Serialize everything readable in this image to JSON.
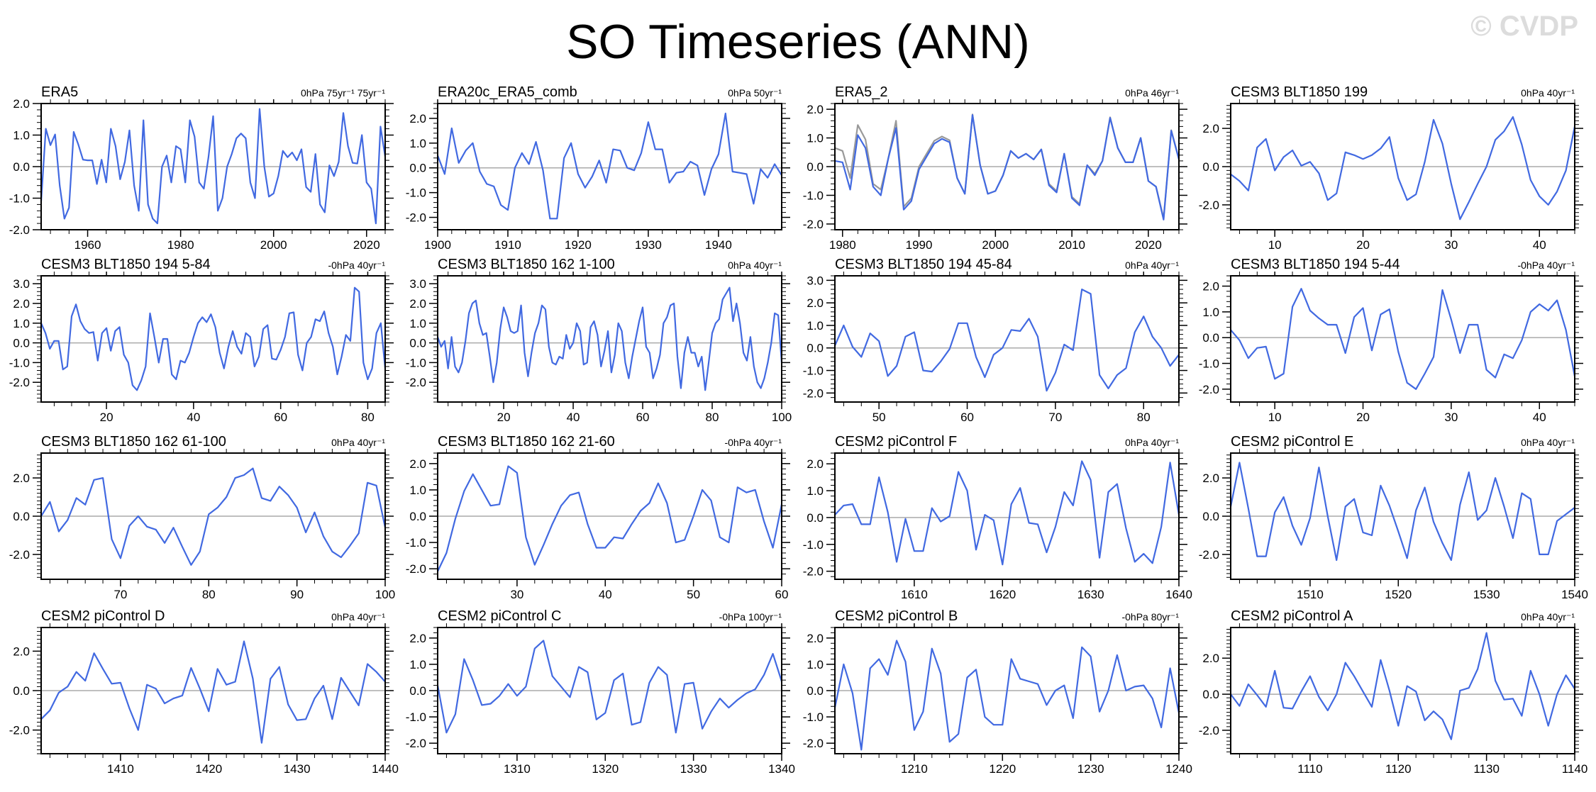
{
  "title": "SO Timeseries (ANN)",
  "watermark": "© CVDP",
  "colors": {
    "series": "#4169E1",
    "reference": "#999999",
    "zero_line": "#aaaaaa",
    "axes": "#000000"
  },
  "chart_data": [
    {
      "type": "line",
      "title": "ERA5",
      "subtitle": "0hPa 75yr⁻¹ 75yr⁻¹",
      "xlim": [
        1950,
        2024
      ],
      "ylim": [
        -2,
        2
      ],
      "xticks": [
        1960,
        1980,
        2000,
        2020
      ],
      "yticks": [
        -2,
        -1,
        0,
        1,
        2
      ],
      "x_start": 1950,
      "values": [
        -1.1,
        1.2,
        0.68,
        1.02,
        -0.6,
        -1.65,
        -1.3,
        1.1,
        0.7,
        0.22,
        0.2,
        0.2,
        -0.55,
        0.22,
        -0.5,
        1.2,
        0.65,
        -0.4,
        0.15,
        1.15,
        -0.6,
        -1.4,
        1.47,
        -1.2,
        -1.65,
        -1.8,
        0.0,
        0.35,
        -0.5,
        0.65,
        0.55,
        -0.5,
        1.47,
        0.95,
        -0.5,
        -0.7,
        0.3,
        1.6,
        -1.4,
        -1.0,
        0.0,
        0.4,
        0.9,
        1.05,
        0.9,
        -0.5,
        -1.0,
        1.83,
        0.0,
        -0.95,
        -0.85,
        -0.3,
        0.5,
        0.3,
        0.45,
        0.2,
        0.55,
        -0.65,
        -0.8,
        0.4,
        -1.2,
        -1.45,
        0.04,
        -0.3,
        0.15,
        1.7,
        0.65,
        0.12,
        0.1,
        1.0,
        -0.5,
        -0.7,
        -1.8,
        1.27,
        0.32
      ]
    },
    {
      "type": "line",
      "title": "ERA20c_ERA5_comb",
      "subtitle": "0hPa 50yr⁻¹",
      "xlim": [
        1900,
        1949
      ],
      "ylim": [
        -2.5,
        2.6
      ],
      "xticks": [
        1900,
        1910,
        1920,
        1930,
        1940
      ],
      "yticks": [
        -2,
        -1,
        0,
        1,
        2
      ],
      "x_start": 1900,
      "values": [
        0.5,
        -0.25,
        1.6,
        0.2,
        0.7,
        1.0,
        -0.15,
        -0.65,
        -0.75,
        -1.5,
        -1.7,
        0.0,
        0.6,
        0.15,
        1.05,
        -0.1,
        -2.05,
        -2.05,
        0.4,
        1.0,
        -0.25,
        -0.8,
        -0.35,
        0.3,
        -0.6,
        0.75,
        0.7,
        0.0,
        -0.1,
        0.6,
        1.85,
        0.75,
        0.75,
        -0.6,
        -0.2,
        -0.15,
        0.25,
        0.1,
        -1.1,
        -0.05,
        0.55,
        2.2,
        -0.15,
        -0.2,
        -0.25,
        -1.45,
        -0.05,
        -0.4,
        0.15,
        -0.3
      ]
    },
    {
      "type": "line",
      "title": "ERA5_2",
      "subtitle": "0hPa 46yr⁻¹",
      "xlim": [
        1979,
        2024
      ],
      "ylim": [
        -2.2,
        2.2
      ],
      "xticks": [
        1980,
        1990,
        2000,
        2010,
        2020
      ],
      "yticks": [
        -2,
        -1,
        0,
        1,
        2
      ],
      "x_start": 1979,
      "reference_values": [
        0.65,
        0.55,
        -0.4,
        1.45,
        0.95,
        -0.6,
        -0.8,
        0.3,
        1.6,
        -1.4,
        -1.1,
        0.0,
        0.45,
        0.9,
        1.05,
        0.92,
        -0.4,
        -0.95,
        1.82,
        0.05,
        -0.95,
        -0.85,
        -0.3,
        0.55,
        0.3,
        0.45,
        0.25,
        0.6,
        -0.6,
        -0.85,
        0.45,
        -1.05,
        -1.3,
        0.05,
        -0.25,
        0.2,
        1.72,
        0.65,
        0.15,
        0.15,
        1.0,
        -0.5,
        -0.7,
        -1.8,
        1.27,
        0.27
      ],
      "values": [
        0.2,
        0.15,
        -0.8,
        1.1,
        0.65,
        -0.7,
        -1.0,
        0.3,
        1.35,
        -1.5,
        -1.2,
        -0.1,
        0.35,
        0.8,
        0.97,
        0.85,
        -0.4,
        -0.95,
        1.8,
        0.05,
        -0.95,
        -0.85,
        -0.3,
        0.55,
        0.3,
        0.45,
        0.25,
        0.6,
        -0.65,
        -0.9,
        0.45,
        -1.1,
        -1.35,
        0.05,
        -0.3,
        0.2,
        1.7,
        0.65,
        0.15,
        0.15,
        1.0,
        -0.5,
        -0.7,
        -1.85,
        1.25,
        0.25
      ]
    },
    {
      "type": "line",
      "title": "CESM3 BLT1850 199",
      "subtitle": "0hPa 40yr⁻¹",
      "xlim": [
        5,
        44
      ],
      "ylim": [
        -3.3,
        3.3
      ],
      "xticks": [
        10,
        20,
        30,
        40
      ],
      "yticks": [
        -2,
        0,
        2
      ],
      "x_start": 5,
      "values": [
        -0.4,
        -0.75,
        -1.25,
        1.0,
        1.45,
        -0.2,
        0.5,
        0.85,
        0.05,
        0.25,
        -0.35,
        -1.75,
        -1.4,
        0.75,
        0.6,
        0.4,
        0.6,
        0.95,
        1.55,
        -0.6,
        -1.75,
        -1.45,
        0.25,
        2.45,
        1.2,
        -0.9,
        -2.75,
        -1.85,
        -0.9,
        0.0,
        1.4,
        1.85,
        2.6,
        1.15,
        -0.7,
        -1.55,
        -2.0,
        -1.3,
        -0.2,
        2.1
      ]
    },
    {
      "type": "line",
      "title": "CESM3 BLT1850 194 5-84",
      "subtitle": "-0hPa 40yr⁻¹",
      "xlim": [
        5,
        84
      ],
      "ylim": [
        -3.0,
        3.4
      ],
      "xticks": [
        20,
        40,
        60,
        80
      ],
      "yticks": [
        -2,
        -1,
        0,
        1,
        2,
        3
      ],
      "x_start": 5,
      "values": [
        1.0,
        0.5,
        -0.3,
        0.1,
        0.1,
        -1.35,
        -1.2,
        1.35,
        1.95,
        1.1,
        0.7,
        0.5,
        0.55,
        -0.9,
        0.5,
        0.75,
        -0.4,
        0.6,
        0.8,
        -0.6,
        -1.0,
        -2.15,
        -2.4,
        -1.9,
        -1.2,
        1.5,
        0.3,
        -1.0,
        0.2,
        0.2,
        -1.6,
        -1.85,
        -0.9,
        -1.0,
        -0.5,
        0.3,
        1.0,
        1.3,
        1.05,
        1.45,
        0.8,
        -0.5,
        -1.3,
        -0.2,
        0.6,
        -0.2,
        -0.55,
        0.5,
        0.3,
        -1.2,
        -0.7,
        0.7,
        0.9,
        -0.8,
        -0.85,
        -0.35,
        0.3,
        1.5,
        1.55,
        -0.6,
        -1.4,
        0.0,
        0.3,
        1.2,
        1.1,
        1.6,
        0.5,
        -0.2,
        -1.6,
        -0.7,
        0.4,
        0.1,
        2.8,
        2.6,
        -1.0,
        -1.85,
        -1.3,
        0.5,
        1.0,
        -1.3
      ]
    },
    {
      "type": "line",
      "title": "CESM3 BLT1850 162 1-100",
      "subtitle": "0hPa 40yr⁻¹",
      "xlim": [
        1,
        100
      ],
      "ylim": [
        -3.0,
        3.4
      ],
      "xticks": [
        20,
        40,
        60,
        80,
        100
      ],
      "yticks": [
        -2,
        -1,
        0,
        1,
        2,
        3
      ],
      "x_start": 1,
      "values": [
        0.3,
        -0.2,
        0.1,
        -1.3,
        0.3,
        -1.2,
        -1.5,
        -1.0,
        0.1,
        1.5,
        2.0,
        2.15,
        1.0,
        0.4,
        0.5,
        -0.7,
        -2.0,
        -1.0,
        0.7,
        1.8,
        1.3,
        0.6,
        0.5,
        0.6,
        1.9,
        -0.5,
        -1.7,
        -0.5,
        0.5,
        1.0,
        1.9,
        1.7,
        -0.2,
        -1.0,
        -1.1,
        -0.7,
        -0.8,
        0.4,
        -0.3,
        0.0,
        1.0,
        0.6,
        -1.1,
        -1.0,
        0.8,
        1.1,
        0.4,
        -1.2,
        -0.4,
        0.6,
        -1.5,
        -0.6,
        1.0,
        0.6,
        -1.0,
        -1.8,
        -0.7,
        0.2,
        1.1,
        1.8,
        -0.2,
        -0.5,
        -1.8,
        -1.3,
        -0.6,
        1.0,
        1.3,
        1.9,
        2.0,
        -0.7,
        -2.3,
        -0.5,
        0.3,
        -0.5,
        -0.5,
        -1.2,
        -0.7,
        -2.4,
        -1.0,
        0.5,
        1.0,
        1.2,
        2.2,
        2.5,
        2.8,
        1.1,
        2.0,
        1.0,
        -0.5,
        -0.9,
        0.3,
        -1.2,
        -2.0,
        -2.3,
        -1.8,
        -1.0,
        0.0,
        1.5,
        1.4,
        -1.0
      ]
    },
    {
      "type": "line",
      "title": "CESM3 BLT1850 194 45-84",
      "subtitle": "0hPa 40yr⁻¹",
      "xlim": [
        45,
        84
      ],
      "ylim": [
        -2.4,
        3.2
      ],
      "xticks": [
        50,
        60,
        70,
        80
      ],
      "yticks": [
        -2,
        -1,
        0,
        1,
        2,
        3
      ],
      "x_start": 45,
      "values": [
        0.1,
        1.0,
        0.05,
        -0.4,
        0.65,
        0.3,
        -1.25,
        -0.8,
        0.5,
        0.7,
        -1.0,
        -1.05,
        -0.6,
        -0.05,
        1.1,
        1.1,
        -0.4,
        -1.3,
        -0.3,
        0.0,
        0.8,
        0.75,
        1.3,
        0.5,
        -1.9,
        -1.1,
        0.15,
        -0.1,
        2.6,
        2.4,
        -1.2,
        -1.8,
        -1.2,
        -0.9,
        0.7,
        1.4,
        0.5,
        0.0,
        -0.8,
        -0.3
      ]
    },
    {
      "type": "line",
      "title": "CESM3 BLT1850 194 5-44",
      "subtitle": "-0hPa 40yr⁻¹",
      "xlim": [
        5,
        44
      ],
      "ylim": [
        -2.5,
        2.4
      ],
      "xticks": [
        10,
        20,
        30,
        40
      ],
      "yticks": [
        -2,
        -1,
        0,
        1,
        2
      ],
      "x_start": 5,
      "values": [
        0.3,
        -0.1,
        -0.8,
        -0.4,
        -0.35,
        -1.6,
        -1.4,
        1.2,
        1.9,
        1.05,
        0.75,
        0.5,
        0.5,
        -0.6,
        0.8,
        1.15,
        -0.5,
        0.9,
        1.1,
        -0.55,
        -1.75,
        -2.0,
        -1.4,
        -0.75,
        1.85,
        0.7,
        -0.6,
        0.5,
        0.5,
        -1.25,
        -1.55,
        -0.65,
        -0.8,
        -0.1,
        1.0,
        1.3,
        1.05,
        1.45,
        0.3,
        -1.5
      ]
    },
    {
      "type": "line",
      "title": "CESM3 BLT1850 162 61-100",
      "subtitle": "0hPa 40yr⁻¹",
      "xlim": [
        61,
        100
      ],
      "ylim": [
        -3.3,
        3.3
      ],
      "xticks": [
        70,
        80,
        90,
        100
      ],
      "yticks": [
        -2,
        0,
        2
      ],
      "x_start": 61,
      "values": [
        0.0,
        0.75,
        -0.8,
        -0.2,
        0.95,
        0.6,
        1.9,
        2.0,
        -1.2,
        -2.2,
        -0.5,
        0.0,
        -0.55,
        -0.7,
        -1.4,
        -0.6,
        -1.6,
        -2.55,
        -1.85,
        0.1,
        0.45,
        1.0,
        2.0,
        2.15,
        2.5,
        0.95,
        0.8,
        1.55,
        1.1,
        0.45,
        -0.85,
        0.2,
        -1.05,
        -1.85,
        -2.15,
        -1.55,
        -0.9,
        1.75,
        1.6,
        -0.6
      ]
    },
    {
      "type": "line",
      "title": "CESM3 BLT1850 162 21-60",
      "subtitle": "-0hPa 40yr⁻¹",
      "xlim": [
        21,
        60
      ],
      "ylim": [
        -2.4,
        2.4
      ],
      "xticks": [
        30,
        40,
        50,
        60
      ],
      "yticks": [
        -2,
        -1,
        0,
        1,
        2
      ],
      "x_start": 21,
      "values": [
        -2.1,
        -1.4,
        -0.1,
        0.95,
        1.6,
        1.0,
        0.4,
        0.45,
        1.9,
        1.65,
        -0.8,
        -1.85,
        -1.1,
        -0.3,
        0.4,
        0.8,
        0.9,
        -0.3,
        -1.2,
        -1.2,
        -0.8,
        -0.85,
        -0.3,
        0.2,
        0.5,
        1.25,
        0.5,
        -1.0,
        -0.9,
        0.0,
        1.0,
        0.6,
        -0.8,
        -1.0,
        1.1,
        0.9,
        1.0,
        -0.2,
        -1.2,
        0.45
      ]
    },
    {
      "type": "line",
      "title": "CESM2 piControl F",
      "subtitle": "0hPa 40yr⁻¹",
      "xlim": [
        1601,
        1640
      ],
      "ylim": [
        -2.3,
        2.4
      ],
      "xticks": [
        1610,
        1620,
        1630,
        1640
      ],
      "yticks": [
        -2,
        -1,
        0,
        1,
        2
      ],
      "x_start": 1601,
      "values": [
        0.1,
        0.45,
        0.5,
        -0.25,
        -0.25,
        1.5,
        0.2,
        -1.65,
        -0.05,
        -1.25,
        -1.25,
        0.35,
        -0.15,
        0.05,
        1.7,
        1.0,
        -1.2,
        0.1,
        -0.1,
        -1.75,
        0.5,
        1.1,
        -0.2,
        -0.25,
        -1.3,
        -0.35,
        0.95,
        0.45,
        2.1,
        1.4,
        -1.5,
        0.95,
        1.25,
        -0.4,
        -1.65,
        -1.35,
        -1.7,
        -0.35,
        2.05,
        0.1
      ]
    },
    {
      "type": "line",
      "title": "CESM2 piControl E",
      "subtitle": "0hPa 40yr⁻¹",
      "xlim": [
        1501,
        1540
      ],
      "ylim": [
        -3.3,
        3.3
      ],
      "xticks": [
        1510,
        1520,
        1530,
        1540
      ],
      "yticks": [
        -2,
        0,
        2
      ],
      "x_start": 1501,
      "values": [
        0.5,
        2.8,
        0.4,
        -2.1,
        -2.1,
        0.2,
        1.0,
        -0.5,
        -1.5,
        -0.1,
        2.55,
        0.0,
        -2.3,
        0.5,
        0.9,
        -0.85,
        -1.0,
        1.6,
        0.55,
        -0.8,
        -2.2,
        0.3,
        1.5,
        -0.3,
        -1.4,
        -2.3,
        0.6,
        2.3,
        -0.2,
        0.3,
        2.0,
        0.5,
        -1.15,
        1.2,
        0.9,
        -2.0,
        -2.0,
        -0.25,
        0.1,
        0.45
      ]
    },
    {
      "type": "line",
      "title": "CESM2 piControl D",
      "subtitle": "0hPa 40yr⁻¹",
      "xlim": [
        1401,
        1440
      ],
      "ylim": [
        -3.2,
        3.2
      ],
      "xticks": [
        1410,
        1420,
        1430,
        1440
      ],
      "yticks": [
        -2,
        0,
        2
      ],
      "x_start": 1401,
      "values": [
        -1.45,
        -1.0,
        -0.1,
        0.2,
        0.95,
        0.5,
        1.9,
        1.1,
        0.35,
        0.4,
        -0.9,
        -2.0,
        0.3,
        0.1,
        -0.65,
        -0.4,
        -0.25,
        1.15,
        0.1,
        -1.05,
        1.1,
        0.3,
        0.45,
        2.5,
        0.6,
        -2.65,
        0.6,
        1.2,
        -0.7,
        -1.5,
        -1.45,
        -0.4,
        0.25,
        -1.45,
        0.65,
        -0.05,
        -0.75,
        1.35,
        0.95,
        0.45
      ]
    },
    {
      "type": "line",
      "title": "CESM2 piControl C",
      "subtitle": "-0hPa 100yr⁻¹",
      "xlim": [
        1301,
        1340
      ],
      "ylim": [
        -2.4,
        2.4
      ],
      "xticks": [
        1310,
        1320,
        1330,
        1340
      ],
      "yticks": [
        -2,
        -1,
        0,
        1,
        2
      ],
      "x_start": 1301,
      "values": [
        0.2,
        -1.6,
        -0.9,
        1.2,
        0.4,
        -0.55,
        -0.5,
        -0.2,
        0.25,
        -0.2,
        0.15,
        1.6,
        1.9,
        0.55,
        0.15,
        -0.25,
        0.9,
        0.7,
        -1.1,
        -0.85,
        0.4,
        0.65,
        -1.3,
        -1.2,
        0.3,
        0.9,
        0.6,
        -1.6,
        0.25,
        0.3,
        -1.45,
        -0.8,
        -0.3,
        -0.65,
        -0.35,
        -0.1,
        0.05,
        0.6,
        1.4,
        0.35
      ]
    },
    {
      "type": "line",
      "title": "CESM2 piControl B",
      "subtitle": "-0hPa 80yr⁻¹",
      "xlim": [
        1201,
        1240
      ],
      "ylim": [
        -2.4,
        2.4
      ],
      "xticks": [
        1210,
        1220,
        1230,
        1240
      ],
      "yticks": [
        -2,
        -1,
        0,
        1,
        2
      ],
      "x_start": 1201,
      "values": [
        -0.65,
        1.0,
        -0.1,
        -2.25,
        0.85,
        1.2,
        0.6,
        1.9,
        1.1,
        -1.5,
        -0.8,
        1.6,
        0.65,
        -1.95,
        -1.65,
        0.5,
        0.8,
        -1.0,
        -1.3,
        -1.3,
        1.2,
        0.45,
        0.35,
        0.25,
        -0.55,
        0.0,
        0.2,
        -1.05,
        1.65,
        1.3,
        -0.8,
        0.0,
        1.35,
        0.0,
        0.15,
        0.2,
        -0.3,
        -1.4,
        0.85,
        -0.85
      ]
    },
    {
      "type": "line",
      "title": "CESM2 piControl A",
      "subtitle": "0hPa 40yr⁻¹",
      "xlim": [
        1101,
        1140
      ],
      "ylim": [
        -3.3,
        3.7
      ],
      "xticks": [
        1110,
        1120,
        1130,
        1140
      ],
      "yticks": [
        -2,
        0,
        2
      ],
      "x_start": 1101,
      "values": [
        0.0,
        -0.65,
        0.55,
        -0.05,
        -0.7,
        1.3,
        -0.75,
        -0.8,
        0.15,
        1.0,
        -0.15,
        -0.9,
        0.0,
        1.75,
        1.0,
        0.15,
        -0.7,
        1.9,
        0.2,
        -1.75,
        0.45,
        0.15,
        -1.45,
        -0.95,
        -1.4,
        -2.5,
        0.2,
        0.35,
        1.4,
        3.4,
        0.75,
        -0.3,
        -0.25,
        -1.2,
        1.3,
        0.0,
        -1.75,
        0.0,
        1.05,
        0.3
      ]
    }
  ]
}
